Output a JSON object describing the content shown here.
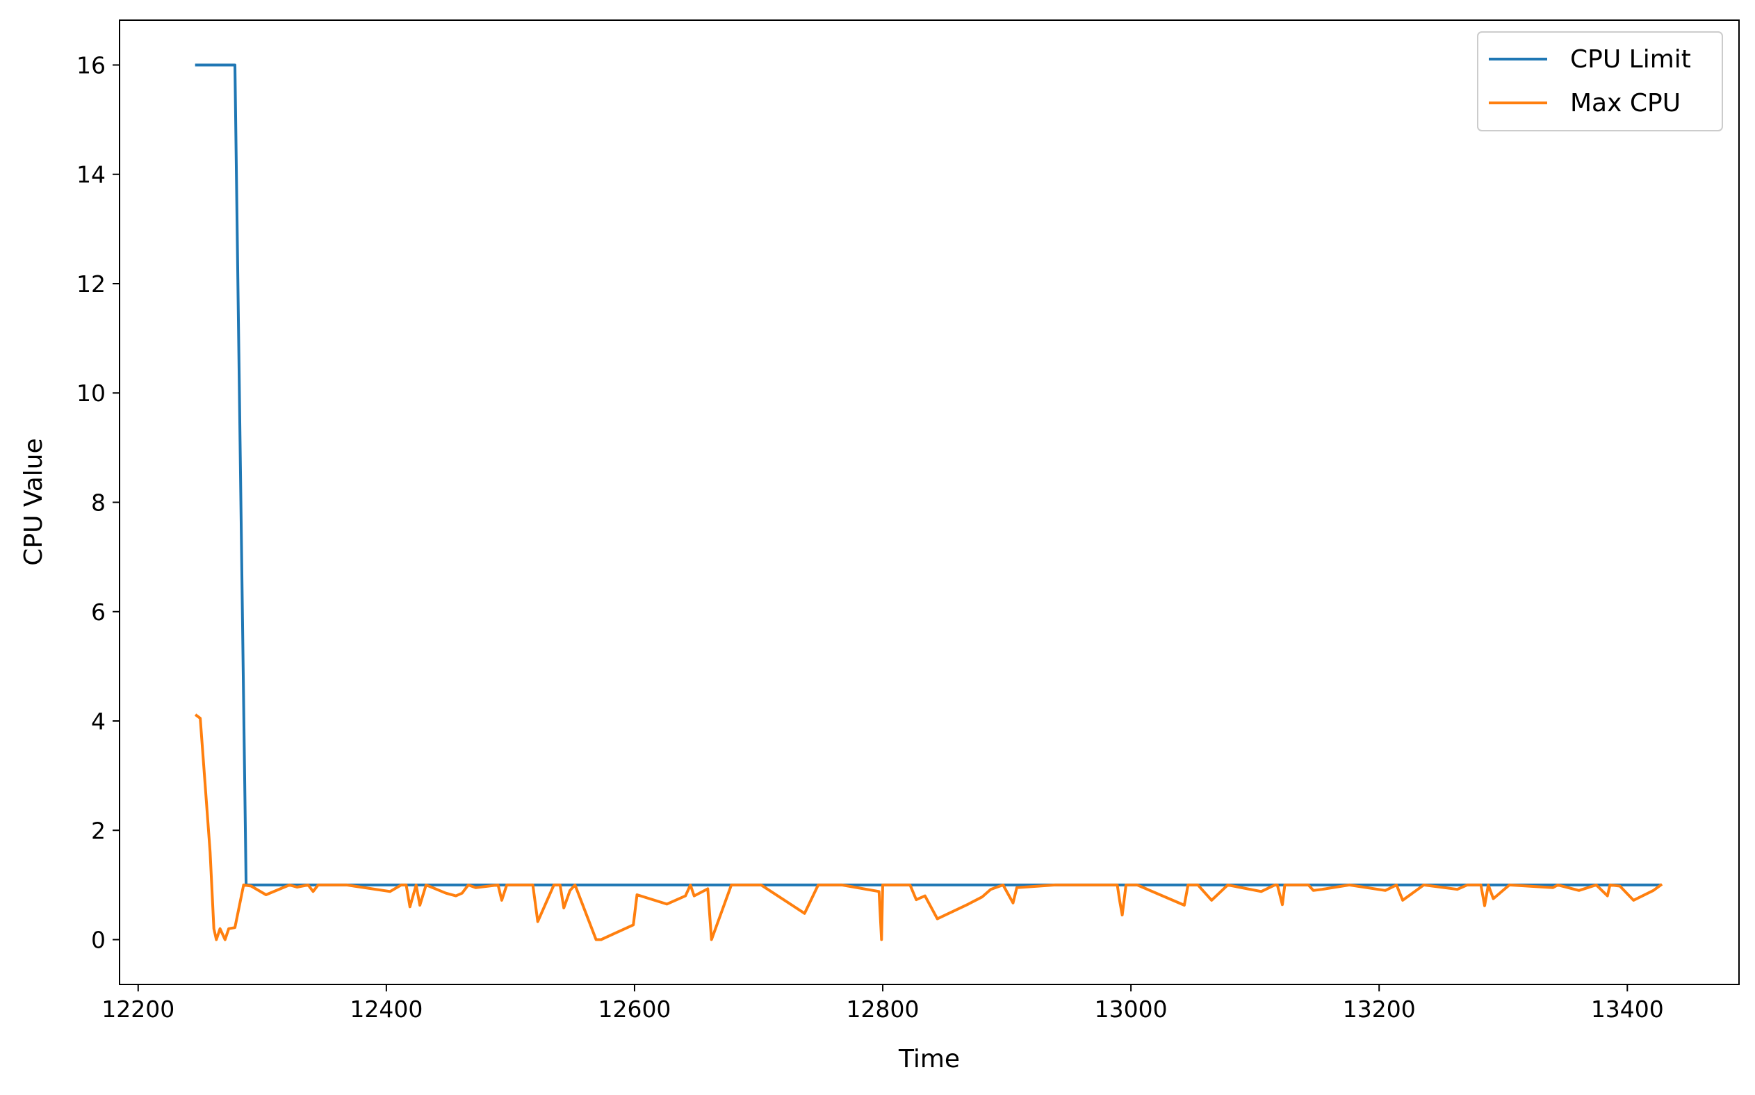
{
  "chart_data": {
    "type": "line",
    "title": "",
    "xlabel": "Time",
    "ylabel": "CPU Value",
    "xlim": [
      12185,
      13490
    ],
    "ylim": [
      -0.82,
      16.82
    ],
    "xticks": [
      12200,
      12400,
      12600,
      12800,
      13000,
      13200,
      13400
    ],
    "yticks": [
      0,
      2,
      4,
      6,
      8,
      10,
      12,
      14,
      16
    ],
    "grid": false,
    "legend": "top-right",
    "series": [
      {
        "name": "CPU Limit",
        "color": "#1f77b4",
        "x": [
          12247,
          12278,
          12287,
          13425
        ],
        "y": [
          16,
          16,
          1,
          1
        ]
      },
      {
        "name": "Max CPU",
        "color": "#ff7f0e",
        "x": [
          12247,
          12250,
          12258,
          12261,
          12263,
          12266,
          12270,
          12273,
          12278,
          12285,
          12291,
          12303,
          12322,
          12328,
          12337,
          12341,
          12345,
          12368,
          12403,
          12412,
          12416,
          12419,
          12424,
          12427,
          12432,
          12448,
          12456,
          12461,
          12466,
          12472,
          12490,
          12493,
          12497,
          12508,
          12518,
          12522,
          12535,
          12540,
          12543,
          12548,
          12552,
          12569,
          12573,
          12599,
          12602,
          12626,
          12641,
          12645,
          12648,
          12659,
          12662,
          12678,
          12702,
          12737,
          12748,
          12758,
          12767,
          12797,
          12799,
          12800,
          12803,
          12822,
          12827,
          12834,
          12844,
          12869,
          12880,
          12887,
          12897,
          12905,
          12908,
          12939,
          12983,
          12989,
          12991,
          12993,
          12996,
          13005,
          13043,
          13046,
          13054,
          13065,
          13078,
          13105,
          13116,
          13118,
          13122,
          13124,
          13143,
          13147,
          13154,
          13176,
          13205,
          13214,
          13219,
          13236,
          13263,
          13271,
          13282,
          13285,
          13288,
          13292,
          13305,
          13340,
          13344,
          13361,
          13375,
          13384,
          13386,
          13394,
          13405,
          13421,
          13427
        ],
        "y": [
          4.1,
          4.05,
          1.6,
          0.2,
          0.0,
          0.2,
          0.0,
          0.2,
          0.22,
          1.0,
          0.98,
          0.82,
          1.0,
          0.96,
          1.0,
          0.88,
          1.0,
          1.0,
          0.88,
          1.0,
          1.0,
          0.6,
          1.0,
          0.63,
          1.0,
          0.85,
          0.8,
          0.85,
          1.0,
          0.95,
          1.0,
          0.72,
          1.0,
          1.0,
          1.0,
          0.33,
          1.0,
          1.0,
          0.58,
          0.9,
          1.0,
          0.0,
          0.0,
          0.27,
          0.82,
          0.65,
          0.8,
          1.0,
          0.8,
          0.93,
          0.0,
          1.0,
          1.0,
          0.48,
          1.0,
          1.0,
          1.0,
          0.88,
          0.0,
          1.0,
          1.0,
          1.0,
          0.73,
          0.8,
          0.38,
          0.65,
          0.78,
          0.92,
          1.0,
          0.67,
          0.95,
          1.0,
          1.0,
          1.0,
          0.7,
          0.45,
          1.0,
          1.0,
          0.63,
          1.0,
          1.0,
          0.72,
          1.0,
          0.88,
          1.0,
          1.0,
          0.64,
          1.0,
          1.0,
          0.9,
          0.92,
          1.0,
          0.9,
          1.0,
          0.72,
          1.0,
          0.92,
          1.0,
          1.0,
          0.62,
          1.0,
          0.75,
          1.0,
          0.95,
          1.0,
          0.9,
          1.0,
          0.8,
          1.0,
          0.98,
          0.72,
          0.9,
          1.0
        ]
      }
    ]
  }
}
